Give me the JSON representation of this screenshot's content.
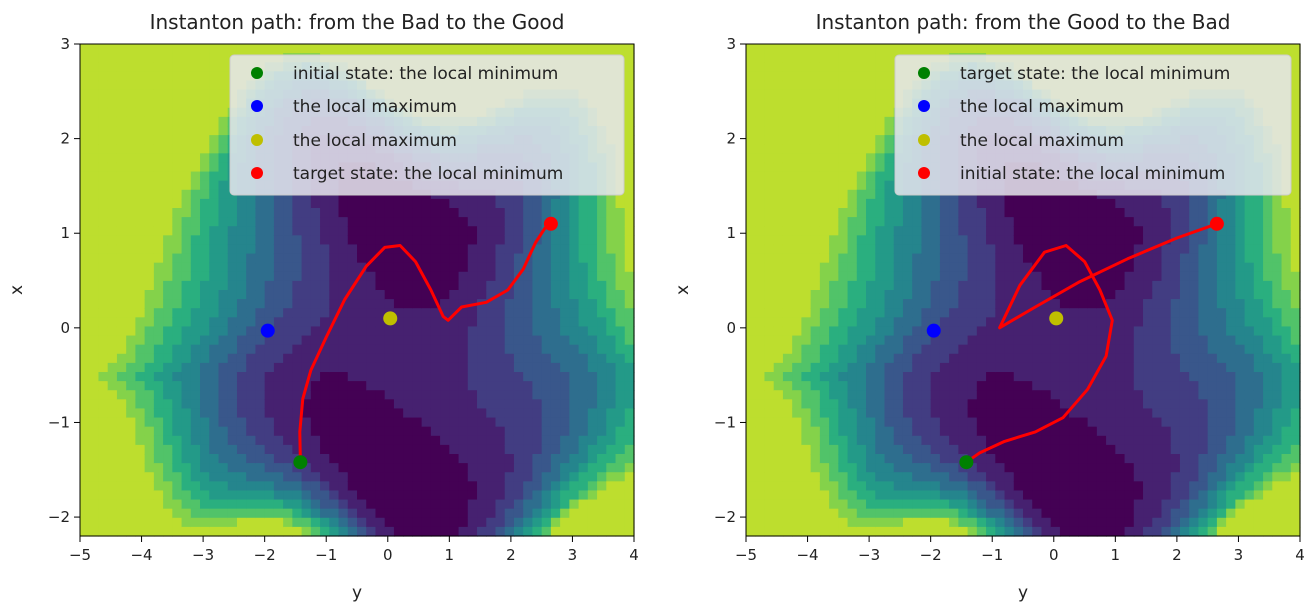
{
  "chart_data": [
    {
      "type": "contour",
      "title": "Instanton path: from the Bad to the Good",
      "xlabel": "y",
      "ylabel": "x",
      "xlim": [
        -5,
        4
      ],
      "ylim": [
        -2.2,
        3
      ],
      "xticks": [
        -5,
        -4,
        -3,
        -2,
        -1,
        0,
        1,
        2,
        3,
        4
      ],
      "yticks": [
        -2,
        -1,
        0,
        1,
        2,
        3
      ],
      "legend_position": "top-right",
      "points": [
        {
          "label": "initial state: the local minimum",
          "x": -1.42,
          "y": -1.42,
          "color": "#008000"
        },
        {
          "label": "the local maximum",
          "x": -1.95,
          "y": -0.03,
          "color": "#0000ff"
        },
        {
          "label": "the local maximum",
          "x": 0.04,
          "y": 0.1,
          "color": "#bfbf00"
        },
        {
          "label": "target state: the local minimum",
          "x": 2.65,
          "y": 1.1,
          "color": "#ff0000"
        }
      ],
      "path": {
        "color": "#ff0000",
        "x": [
          -1.42,
          -1.43,
          -1.38,
          -1.25,
          -1.0,
          -0.7,
          -0.35,
          -0.05,
          0.2,
          0.45,
          0.7,
          0.9,
          0.98,
          1.2,
          1.6,
          1.95,
          2.2,
          2.4,
          2.55,
          2.65
        ],
        "y": [
          -1.42,
          -1.1,
          -0.75,
          -0.45,
          -0.1,
          0.3,
          0.65,
          0.85,
          0.87,
          0.7,
          0.4,
          0.12,
          0.08,
          0.22,
          0.27,
          0.4,
          0.62,
          0.9,
          1.05,
          1.1
        ]
      }
    },
    {
      "type": "contour",
      "title": "Instanton path: from the Good to the Bad",
      "xlabel": "y",
      "ylabel": "x",
      "xlim": [
        -5,
        4
      ],
      "ylim": [
        -2.2,
        3
      ],
      "xticks": [
        -5,
        -4,
        -3,
        -2,
        -1,
        0,
        1,
        2,
        3,
        4
      ],
      "yticks": [
        -2,
        -1,
        0,
        1,
        2,
        3
      ],
      "legend_position": "top-right",
      "points": [
        {
          "label": "target state: the local minimum",
          "x": -1.42,
          "y": -1.42,
          "color": "#008000"
        },
        {
          "label": "the local maximum",
          "x": -1.95,
          "y": -0.03,
          "color": "#0000ff"
        },
        {
          "label": "the local maximum",
          "x": 0.04,
          "y": 0.1,
          "color": "#bfbf00"
        },
        {
          "label": "initial state: the local minimum",
          "x": 2.65,
          "y": 1.1,
          "color": "#ff0000"
        }
      ],
      "path": {
        "color": "#ff0000",
        "x": [
          2.65,
          2.0,
          1.2,
          0.4,
          -0.3,
          -0.88,
          -0.55,
          -0.15,
          0.2,
          0.5,
          0.75,
          0.95,
          0.85,
          0.55,
          0.15,
          -0.3,
          -0.8,
          -1.2,
          -1.42
        ],
        "y": [
          1.1,
          0.95,
          0.73,
          0.48,
          0.22,
          0.0,
          0.45,
          0.8,
          0.87,
          0.7,
          0.4,
          0.08,
          -0.3,
          -0.65,
          -0.95,
          -1.1,
          -1.2,
          -1.32,
          -1.42
        ]
      }
    }
  ]
}
